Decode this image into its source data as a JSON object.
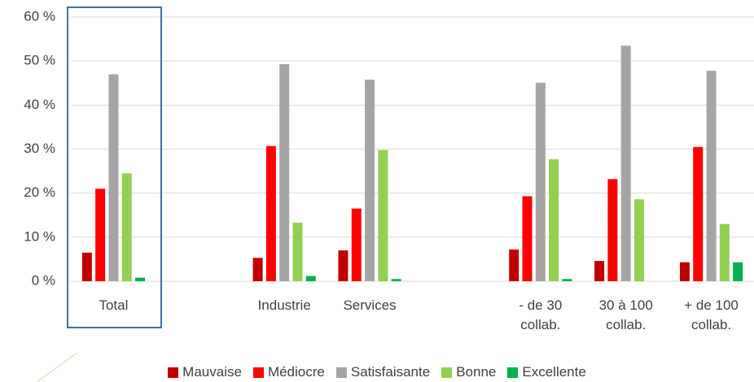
{
  "chart_data": {
    "type": "bar",
    "categories": [
      "Total",
      null,
      "Industrie",
      "Services",
      null,
      "- de 30\ncollab.",
      "30 à 100\ncollab.",
      "+ de 100\ncollab."
    ],
    "series": [
      {
        "name": "Mauvaise",
        "color": "#c00000",
        "values": [
          6.5,
          null,
          5.3,
          7.0,
          null,
          7.2,
          4.6,
          4.3
        ]
      },
      {
        "name": "Médiocre",
        "color": "#ff0000",
        "values": [
          21.0,
          null,
          30.7,
          16.5,
          null,
          19.3,
          23.2,
          30.5
        ]
      },
      {
        "name": "Satisfaisante",
        "color": "#a5a5a5",
        "values": [
          47.0,
          null,
          49.3,
          45.8,
          null,
          45.1,
          53.5,
          47.8
        ]
      },
      {
        "name": "Bonne",
        "color": "#92d050",
        "values": [
          24.5,
          null,
          13.3,
          29.8,
          null,
          27.7,
          18.6,
          13.0
        ]
      },
      {
        "name": "Excellente",
        "color": "#00b050",
        "values": [
          0.8,
          null,
          1.2,
          0.5,
          null,
          0.5,
          0,
          4.3
        ]
      }
    ],
    "ylim": [
      0,
      60
    ],
    "yticks": [
      {
        "value": 0,
        "label": "0 %"
      },
      {
        "value": 10,
        "label": "10 %"
      },
      {
        "value": 20,
        "label": "20 %"
      },
      {
        "value": 30,
        "label": "30 %"
      },
      {
        "value": 40,
        "label": "40 %"
      },
      {
        "value": 50,
        "label": "50 %"
      },
      {
        "value": 60,
        "label": "60 %"
      }
    ],
    "grid": true
  }
}
